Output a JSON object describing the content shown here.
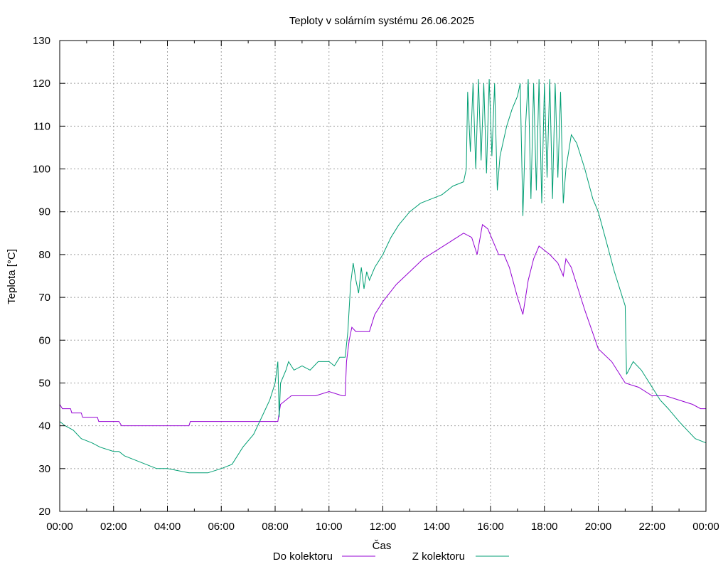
{
  "chart_data": {
    "type": "line",
    "title": "Teploty v solárním systému 26.06.2025",
    "xlabel": "Čas",
    "ylabel": "Teplota [°C]",
    "xlim": [
      0,
      24
    ],
    "ylim": [
      20,
      130
    ],
    "x_ticks": [
      "00:00",
      "02:00",
      "04:00",
      "06:00",
      "08:00",
      "10:00",
      "12:00",
      "14:00",
      "16:00",
      "18:00",
      "20:00",
      "22:00",
      "00:00"
    ],
    "y_ticks": [
      20,
      30,
      40,
      50,
      60,
      70,
      80,
      90,
      100,
      110,
      120,
      130
    ],
    "grid": true,
    "legend": "bottom",
    "series": [
      {
        "name": "Do kolektoru",
        "color": "#9400d3",
        "points": [
          [
            0,
            45
          ],
          [
            0.1,
            44
          ],
          [
            0.4,
            44
          ],
          [
            0.45,
            43
          ],
          [
            0.8,
            43
          ],
          [
            0.85,
            42
          ],
          [
            1.4,
            42
          ],
          [
            1.45,
            41
          ],
          [
            2.2,
            41
          ],
          [
            2.3,
            40
          ],
          [
            4.8,
            40
          ],
          [
            4.85,
            41
          ],
          [
            8.1,
            41
          ],
          [
            8.15,
            43
          ],
          [
            8.2,
            45
          ],
          [
            8.4,
            46
          ],
          [
            8.6,
            47
          ],
          [
            9,
            47
          ],
          [
            9.5,
            47
          ],
          [
            10,
            48
          ],
          [
            10.5,
            47
          ],
          [
            10.6,
            47
          ],
          [
            10.65,
            55
          ],
          [
            10.75,
            60
          ],
          [
            10.85,
            63
          ],
          [
            11,
            62
          ],
          [
            11.5,
            62
          ],
          [
            11.7,
            66
          ],
          [
            12,
            69
          ],
          [
            12.5,
            73
          ],
          [
            13,
            76
          ],
          [
            13.5,
            79
          ],
          [
            14,
            81
          ],
          [
            14.5,
            83
          ],
          [
            15,
            85
          ],
          [
            15.3,
            84
          ],
          [
            15.5,
            80
          ],
          [
            15.7,
            87
          ],
          [
            15.9,
            86
          ],
          [
            16.1,
            83
          ],
          [
            16.3,
            80
          ],
          [
            16.5,
            80
          ],
          [
            16.7,
            77
          ],
          [
            17,
            70
          ],
          [
            17.2,
            66
          ],
          [
            17.4,
            74
          ],
          [
            17.6,
            79
          ],
          [
            17.8,
            82
          ],
          [
            18,
            81
          ],
          [
            18.2,
            80
          ],
          [
            18.5,
            78
          ],
          [
            18.7,
            75
          ],
          [
            18.8,
            79
          ],
          [
            19,
            77
          ],
          [
            19.5,
            67
          ],
          [
            20,
            58
          ],
          [
            20.5,
            55
          ],
          [
            20.8,
            52
          ],
          [
            21,
            50
          ],
          [
            21.5,
            49
          ],
          [
            22,
            47
          ],
          [
            22.5,
            47
          ],
          [
            23,
            46
          ],
          [
            23.5,
            45
          ],
          [
            23.8,
            44
          ],
          [
            24,
            44
          ]
        ]
      },
      {
        "name": "Z kolektoru",
        "color": "#009e73",
        "points": [
          [
            0,
            41
          ],
          [
            0.2,
            40
          ],
          [
            0.5,
            39
          ],
          [
            0.8,
            37
          ],
          [
            1.2,
            36
          ],
          [
            1.5,
            35
          ],
          [
            2,
            34
          ],
          [
            2.2,
            34
          ],
          [
            2.4,
            33
          ],
          [
            2.8,
            32
          ],
          [
            3.2,
            31
          ],
          [
            3.6,
            30
          ],
          [
            4,
            30
          ],
          [
            4.8,
            29
          ],
          [
            5,
            29
          ],
          [
            5.5,
            29
          ],
          [
            6,
            30
          ],
          [
            6.4,
            31
          ],
          [
            6.8,
            35
          ],
          [
            7.2,
            38
          ],
          [
            7.5,
            42
          ],
          [
            7.8,
            46
          ],
          [
            8,
            50
          ],
          [
            8.1,
            55
          ],
          [
            8.15,
            42
          ],
          [
            8.2,
            50
          ],
          [
            8.4,
            53
          ],
          [
            8.5,
            55
          ],
          [
            8.7,
            53
          ],
          [
            9,
            54
          ],
          [
            9.3,
            53
          ],
          [
            9.6,
            55
          ],
          [
            10,
            55
          ],
          [
            10.2,
            54
          ],
          [
            10.4,
            56
          ],
          [
            10.5,
            56
          ],
          [
            10.6,
            56
          ],
          [
            10.7,
            62
          ],
          [
            10.8,
            73
          ],
          [
            10.9,
            78
          ],
          [
            11,
            74
          ],
          [
            11.1,
            71
          ],
          [
            11.2,
            77
          ],
          [
            11.3,
            72
          ],
          [
            11.4,
            76
          ],
          [
            11.5,
            74
          ],
          [
            11.7,
            77
          ],
          [
            12,
            80
          ],
          [
            12.3,
            84
          ],
          [
            12.6,
            87
          ],
          [
            13,
            90
          ],
          [
            13.4,
            92
          ],
          [
            13.8,
            93
          ],
          [
            14.2,
            94
          ],
          [
            14.6,
            96
          ],
          [
            15,
            97
          ],
          [
            15.1,
            100
          ],
          [
            15.15,
            118
          ],
          [
            15.25,
            104
          ],
          [
            15.35,
            120
          ],
          [
            15.45,
            100
          ],
          [
            15.55,
            121
          ],
          [
            15.65,
            102
          ],
          [
            15.75,
            120
          ],
          [
            15.85,
            99
          ],
          [
            15.95,
            121
          ],
          [
            16.05,
            103
          ],
          [
            16.15,
            120
          ],
          [
            16.25,
            95
          ],
          [
            16.35,
            103
          ],
          [
            16.6,
            110
          ],
          [
            16.8,
            114
          ],
          [
            17,
            117
          ],
          [
            17.1,
            120
          ],
          [
            17.2,
            89
          ],
          [
            17.3,
            110
          ],
          [
            17.4,
            121
          ],
          [
            17.5,
            93
          ],
          [
            17.6,
            120
          ],
          [
            17.7,
            95
          ],
          [
            17.8,
            121
          ],
          [
            17.9,
            92
          ],
          [
            18,
            120
          ],
          [
            18.1,
            98
          ],
          [
            18.2,
            121
          ],
          [
            18.3,
            93
          ],
          [
            18.4,
            120
          ],
          [
            18.5,
            98
          ],
          [
            18.6,
            118
          ],
          [
            18.7,
            92
          ],
          [
            18.8,
            100
          ],
          [
            19,
            108
          ],
          [
            19.2,
            106
          ],
          [
            19.5,
            100
          ],
          [
            19.8,
            93
          ],
          [
            20,
            90
          ],
          [
            20.3,
            83
          ],
          [
            20.6,
            76
          ],
          [
            20.9,
            70
          ],
          [
            21,
            68
          ],
          [
            21.05,
            52
          ],
          [
            21.3,
            55
          ],
          [
            21.6,
            53
          ],
          [
            22,
            49
          ],
          [
            22.3,
            46
          ],
          [
            22.6,
            44
          ],
          [
            23,
            41
          ],
          [
            23.3,
            39
          ],
          [
            23.6,
            37
          ],
          [
            24,
            36
          ]
        ]
      }
    ]
  }
}
